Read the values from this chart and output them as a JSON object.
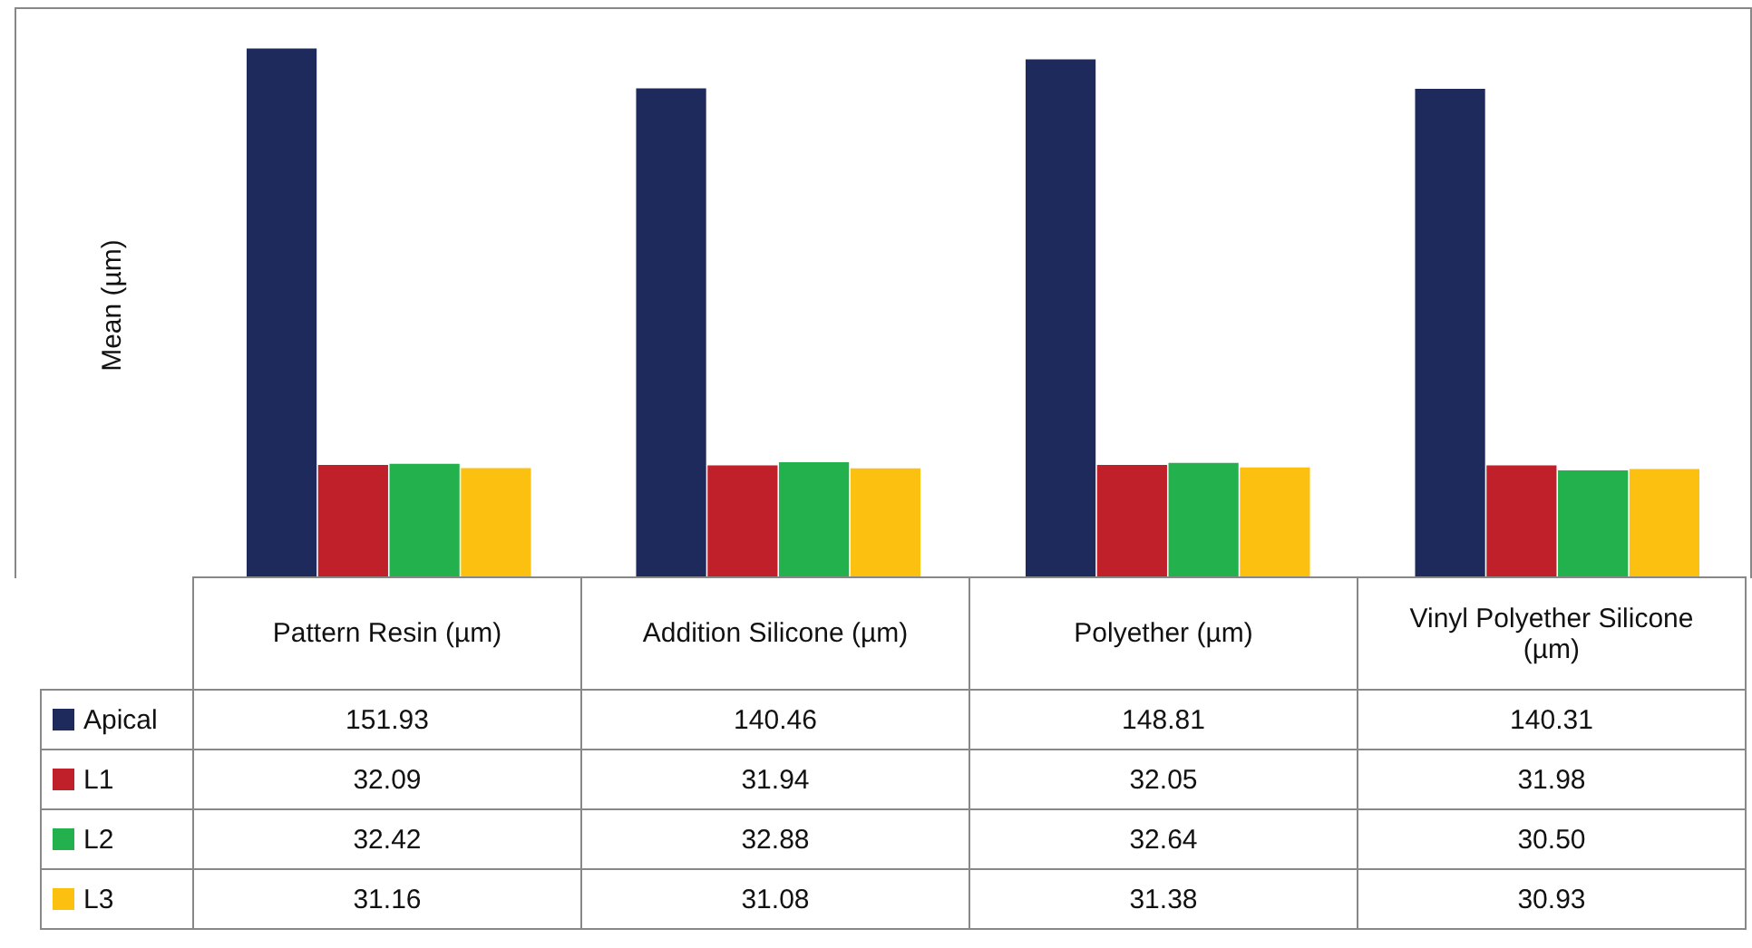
{
  "chart_data": {
    "type": "bar",
    "ylabel": "Mean (µm)",
    "categories": [
      "Pattern Resin (µm)",
      "Addition Silicone (µm)",
      "Polyether (µm)",
      "Vinyl Polyether Silicone (µm)"
    ],
    "legend": "bottom",
    "series": [
      {
        "name": "Apical",
        "color": "#1f2a5c",
        "values": [
          151.93,
          140.46,
          148.81,
          140.31
        ],
        "value_labels": [
          "151.93",
          "140.46",
          "148.81",
          "140.31"
        ]
      },
      {
        "name": "L1",
        "color": "#c0202a",
        "values": [
          32.09,
          31.94,
          32.05,
          31.98
        ],
        "value_labels": [
          "32.09",
          "31.94",
          "32.05",
          "31.98"
        ]
      },
      {
        "name": "L2",
        "color": "#22b14c",
        "values": [
          32.42,
          32.88,
          32.64,
          30.5
        ],
        "value_labels": [
          "32.42",
          "32.88",
          "32.64",
          "30.50"
        ]
      },
      {
        "name": "L3",
        "color": "#fcc010",
        "values": [
          31.16,
          31.08,
          31.38,
          30.93
        ],
        "value_labels": [
          "31.16",
          "31.08",
          "31.38",
          "30.93"
        ]
      }
    ]
  }
}
